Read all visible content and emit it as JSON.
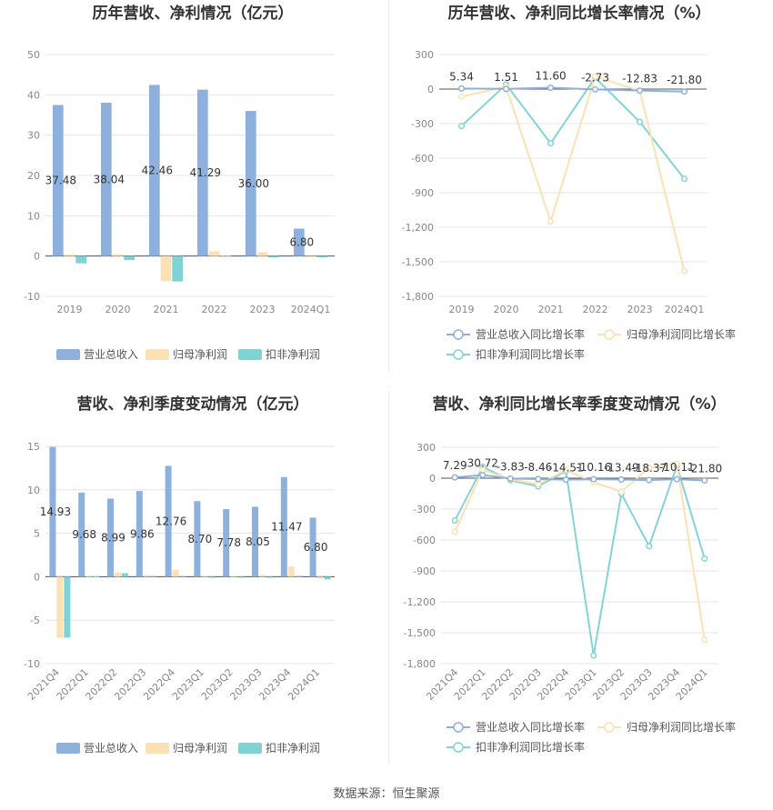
{
  "source": "数据来源：恒生聚源",
  "colors": {
    "revenue": "#8eb0dc",
    "net_profit": "#fce1b4",
    "deducted_profit": "#7fd3d5",
    "revenue_yoy": "#8eb0dc",
    "net_profit_yoy": "#fce1b4",
    "deducted_profit_yoy": "#84d3d6"
  },
  "chart_data": [
    {
      "type": "bar",
      "title": "历年营收、净利情况（亿元）",
      "categories": [
        "2019",
        "2020",
        "2021",
        "2022",
        "2023",
        "2024Q1"
      ],
      "ylim": [
        -10,
        50
      ],
      "yticks": [
        50,
        40,
        30,
        20,
        10,
        0,
        -10
      ],
      "grid": true,
      "legend_position": "bottom",
      "series": [
        {
          "name": "营业总收入",
          "values": [
            37.48,
            38.04,
            42.46,
            41.29,
            36.0,
            6.8
          ],
          "labels": [
            "37.48",
            "38.04",
            "42.46",
            "41.29",
            "36.00",
            "6.80"
          ]
        },
        {
          "name": "归母净利润",
          "values": [
            0.4,
            0.45,
            -6.2,
            1.2,
            1.0,
            -0.2
          ]
        },
        {
          "name": "扣非净利润",
          "values": [
            -1.8,
            -1.0,
            -6.3,
            0.1,
            -0.3,
            -0.3
          ]
        }
      ]
    },
    {
      "type": "line",
      "title": "历年营收、净利同比增长率情况（%）",
      "categories": [
        "2019",
        "2020",
        "2021",
        "2022",
        "2023",
        "2024Q1"
      ],
      "ylim": [
        -1800,
        300
      ],
      "yticks": [
        "300",
        "0",
        "-300",
        "-600",
        "-900",
        "-1,200",
        "-1,500",
        "-1,800"
      ],
      "ytick_values": [
        300,
        0,
        -300,
        -600,
        -900,
        -1200,
        -1500,
        -1800
      ],
      "grid": true,
      "legend_position": "bottom",
      "series": [
        {
          "name": "营业总收入同比增长率",
          "values": [
            5.34,
            1.51,
            11.6,
            -2.73,
            -12.83,
            -21.8
          ],
          "labels": [
            "5.34",
            "1.51",
            "11.60",
            "-2.73",
            "-12.83",
            "-21.80"
          ]
        },
        {
          "name": "归母净利润同比增长率",
          "values": [
            -65,
            20,
            -1150,
            110,
            -15,
            -1580
          ]
        },
        {
          "name": "扣非净利润同比增长率",
          "values": [
            -320,
            40,
            -470,
            100,
            -285,
            -780
          ]
        }
      ]
    },
    {
      "type": "bar",
      "title": "营收、净利季度变动情况（亿元）",
      "categories": [
        "2021Q4",
        "2022Q1",
        "2022Q2",
        "2022Q3",
        "2022Q4",
        "2023Q1",
        "2023Q2",
        "2023Q3",
        "2023Q4",
        "2024Q1"
      ],
      "ylim": [
        -10,
        15
      ],
      "yticks": [
        15,
        10,
        5,
        0,
        -5,
        -10
      ],
      "grid": true,
      "legend_position": "bottom",
      "series": [
        {
          "name": "营业总收入",
          "values": [
            14.93,
            9.68,
            8.99,
            9.86,
            12.76,
            8.7,
            7.78,
            8.05,
            11.47,
            6.8
          ],
          "labels": [
            "14.93",
            "9.68",
            "8.99",
            "9.86",
            "12.76",
            "8.70",
            "7.78",
            "8.05",
            "11.47",
            "6.80"
          ]
        },
        {
          "name": "归母净利润",
          "values": [
            -7.0,
            0.1,
            0.5,
            0.2,
            0.8,
            0.1,
            0.1,
            0.2,
            1.2,
            -0.2
          ]
        },
        {
          "name": "扣非净利润",
          "values": [
            -7.0,
            0.05,
            0.4,
            0.1,
            0.1,
            -0.1,
            -0.1,
            -0.1,
            0.1,
            -0.3
          ]
        }
      ]
    },
    {
      "type": "line",
      "title": "营收、净利同比增长率季度变动情况（%）",
      "categories": [
        "2021Q4",
        "2022Q1",
        "2022Q2",
        "2022Q3",
        "2022Q4",
        "2023Q1",
        "2023Q2",
        "2023Q3",
        "2023Q4",
        "2024Q1"
      ],
      "ylim": [
        -1800,
        300
      ],
      "yticks": [
        "300",
        "0",
        "-300",
        "-600",
        "-900",
        "-1,200",
        "-1,500",
        "-1,800"
      ],
      "ytick_values": [
        300,
        0,
        -300,
        -600,
        -900,
        -1200,
        -1500,
        -1800
      ],
      "grid": true,
      "legend_position": "bottom",
      "series": [
        {
          "name": "营业总收入同比增长率",
          "values": [
            7.29,
            30.72,
            -3.83,
            -8.46,
            -14.51,
            -10.16,
            -13.49,
            -18.37,
            -10.11,
            -21.8
          ],
          "labels": [
            "7.29",
            "30.72",
            "-3.83",
            "-8.46",
            "-14.51",
            "-10.16",
            "-13.49",
            "-18.37",
            "-10.11",
            "-21.80"
          ]
        },
        {
          "name": "归母净利润同比增长率",
          "values": [
            -520,
            80,
            -10,
            -60,
            80,
            -40,
            -130,
            100,
            140,
            -1570
          ]
        },
        {
          "name": "扣非净利润同比增长率",
          "values": [
            -410,
            110,
            -20,
            -80,
            70,
            -1720,
            -150,
            -660,
            120,
            -780
          ]
        }
      ]
    }
  ]
}
